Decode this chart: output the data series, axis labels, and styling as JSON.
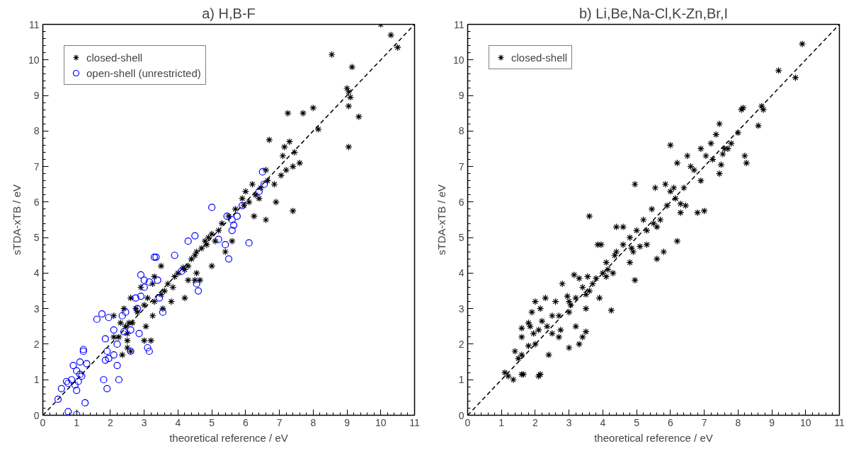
{
  "chart_data": [
    {
      "type": "scatter",
      "title": "a) H,B-F",
      "xlabel": "theoretical reference / eV",
      "ylabel": "sTDA-xTB / eV",
      "xlim": [
        0,
        11
      ],
      "ylim": [
        0,
        11
      ],
      "xticks": [
        0,
        1,
        2,
        3,
        4,
        5,
        6,
        7,
        8,
        9,
        10,
        11
      ],
      "yticks": [
        0,
        1,
        2,
        3,
        4,
        5,
        6,
        7,
        8,
        9,
        10,
        11
      ],
      "grid": false,
      "legend": "top left",
      "series": [
        {
          "name": "closed-shell",
          "color": "#000000",
          "marker": "cross",
          "x": [
            10.0,
            10.3,
            10.5,
            8.55,
            9.15,
            9.0,
            9.05,
            9.1,
            9.05,
            9.35,
            9.05,
            7.25,
            7.7,
            8.0,
            8.15,
            6.7,
            7.1,
            7.15,
            7.3,
            7.45,
            7.6,
            7.4,
            7.2,
            7.05,
            6.85,
            6.6,
            6.65,
            6.45,
            6.3,
            6.2,
            6.0,
            6.1,
            5.9,
            6.4,
            6.6,
            6.9,
            7.4,
            6.25,
            5.95,
            5.7,
            5.5,
            5.3,
            5.2,
            5.0,
            4.8,
            4.7,
            4.55,
            4.4,
            4.3,
            4.2,
            4.0,
            4.5,
            4.9,
            5.1,
            5.4,
            5.6,
            4.85,
            5.0,
            4.55,
            4.3,
            4.2,
            4.65,
            4.15,
            4.5,
            3.9,
            3.7,
            3.6,
            3.5,
            3.3,
            3.1,
            3.0,
            3.25,
            3.3,
            3.5,
            3.85,
            3.8,
            3.55,
            3.25,
            3.05,
            3.2,
            3.0,
            2.8,
            2.65,
            2.5,
            2.3,
            2.25,
            2.55,
            2.45,
            2.5,
            2.6,
            2.35,
            2.5,
            2.1,
            2.1,
            2.4,
            2.6,
            2.75,
            2.9
          ],
          "values": [
            11.0,
            10.7,
            10.35,
            10.15,
            9.8,
            9.2,
            9.1,
            8.95,
            8.7,
            8.4,
            7.55,
            8.5,
            8.5,
            8.65,
            8.05,
            7.75,
            7.3,
            7.55,
            7.7,
            7.4,
            7.1,
            7.0,
            6.9,
            6.75,
            6.5,
            6.9,
            6.6,
            6.4,
            6.2,
            6.5,
            6.3,
            6.0,
            6.1,
            6.1,
            5.5,
            6.0,
            5.75,
            5.6,
            5.9,
            5.8,
            5.6,
            5.4,
            5.2,
            5.1,
            4.9,
            4.7,
            4.6,
            4.4,
            4.2,
            4.1,
            4.0,
            4.5,
            5.0,
            4.9,
            4.6,
            4.9,
            4.8,
            4.2,
            4.0,
            3.8,
            3.3,
            3.8,
            4.15,
            3.8,
            3.9,
            3.7,
            3.5,
            3.4,
            3.2,
            3.3,
            3.1,
            3.7,
            3.9,
            4.2,
            3.6,
            3.2,
            3.0,
            2.8,
            2.5,
            2.1,
            2.1,
            2.9,
            2.6,
            2.3,
            2.6,
            2.2,
            2.6,
            2.5,
            2.1,
            1.8,
            1.7,
            1.9,
            2.8,
            2.2,
            3.0,
            3.3,
            3.0,
            3.6
          ]
        },
        {
          "name": "open-shell (unrestricted)",
          "color": "#0000ff",
          "marker": "circle",
          "x": [
            0.45,
            0.55,
            0.7,
            0.75,
            0.85,
            0.95,
            1.0,
            1.05,
            1.1,
            1.0,
            1.15,
            0.9,
            1.1,
            1.3,
            1.2,
            1.2,
            1.25,
            0.75,
            1.0,
            1.85,
            1.8,
            1.9,
            1.9,
            1.95,
            2.1,
            2.2,
            2.25,
            1.6,
            1.75,
            1.95,
            1.85,
            2.1,
            2.2,
            2.35,
            2.45,
            2.4,
            2.6,
            2.6,
            2.8,
            2.85,
            3.1,
            3.15,
            2.75,
            2.9,
            3.0,
            3.0,
            2.9,
            3.15,
            3.4,
            3.45,
            3.55,
            3.3,
            3.35,
            3.9,
            4.1,
            4.3,
            4.5,
            4.55,
            4.6,
            5.0,
            5.2,
            5.5,
            5.4,
            5.45,
            5.6,
            5.75,
            5.9,
            5.6,
            6.1,
            5.65,
            6.4,
            6.5,
            6.55
          ],
          "values": [
            0.45,
            0.75,
            0.95,
            0.9,
            1.0,
            0.85,
            0.7,
            0.95,
            1.15,
            1.25,
            1.1,
            1.4,
            1.5,
            1.45,
            1.85,
            1.8,
            0.35,
            0.1,
            0.02,
            1.55,
            1.0,
            0.75,
            1.8,
            1.6,
            1.7,
            1.4,
            1.0,
            2.7,
            2.85,
            2.75,
            2.15,
            2.4,
            2.0,
            2.8,
            2.9,
            2.35,
            2.4,
            1.8,
            3.0,
            2.3,
            1.9,
            1.8,
            3.3,
            3.35,
            3.6,
            3.8,
            3.95,
            3.75,
            3.8,
            3.3,
            2.9,
            4.45,
            4.45,
            4.5,
            4.05,
            4.9,
            5.05,
            3.7,
            3.5,
            5.85,
            4.95,
            4.4,
            4.8,
            5.6,
            5.5,
            5.6,
            5.9,
            5.2,
            4.85,
            5.35,
            6.3,
            6.85,
            6.5
          ]
        },
        {
          "type": "line",
          "color": "#000000",
          "line_style": "dashed",
          "x": [
            0,
            11
          ],
          "values": [
            0,
            11
          ]
        }
      ]
    },
    {
      "type": "scatter",
      "title": "b) Li,Be,Na-Cl,K-Zn,Br,I",
      "xlabel": "theoretical reference / eV",
      "ylabel": "sTDA-xTB / eV",
      "xlim": [
        0,
        11
      ],
      "ylim": [
        0,
        11
      ],
      "xticks": [
        0,
        1,
        2,
        3,
        4,
        5,
        6,
        7,
        8,
        9,
        10,
        11
      ],
      "yticks": [
        0,
        1,
        2,
        3,
        4,
        5,
        6,
        7,
        8,
        9,
        10,
        11
      ],
      "grid": false,
      "legend": "top left",
      "series": [
        {
          "name": "closed-shell",
          "color": "#000000",
          "marker": "cross",
          "x": [
            9.9,
            9.2,
            9.7,
            8.1,
            8.15,
            8.7,
            8.75,
            8.6,
            8.0,
            7.7,
            7.45,
            7.35,
            7.8,
            7.55,
            7.6,
            7.2,
            6.9,
            7.05,
            7.25,
            8.2,
            7.5,
            8.25,
            7.45,
            6.0,
            6.2,
            6.5,
            6.6,
            6.9,
            6.4,
            6.7,
            5.85,
            6.0,
            6.15,
            6.1,
            5.55,
            5.9,
            6.3,
            6.45,
            6.8,
            7.0,
            6.3,
            5.7,
            5.5,
            5.3,
            5.2,
            5.45,
            4.95,
            5.0,
            4.8,
            4.6,
            4.85,
            5.1,
            5.3,
            5.6,
            5.8,
            6.2,
            5.6,
            4.95,
            4.4,
            4.3,
            4.1,
            4.0,
            3.8,
            3.7,
            3.6,
            3.5,
            3.4,
            3.2,
            3.0,
            3.05,
            3.5,
            3.9,
            4.1,
            4.25,
            3.6,
            3.95,
            3.85,
            4.4,
            4.8,
            4.6,
            4.9,
            4.35,
            4.15,
            3.55,
            3.3,
            3.15,
            2.8,
            2.95,
            2.6,
            2.5,
            2.3,
            2.15,
            2.0,
            1.9,
            1.8,
            1.6,
            1.6,
            1.85,
            2.1,
            2.35,
            2.7,
            2.75,
            3.0,
            3.2,
            3.5,
            2.7,
            3.4,
            2.4,
            3.0,
            3.3,
            2.0,
            1.8,
            1.4,
            1.5,
            1.6,
            1.1,
            1.2,
            1.35,
            1.6,
            1.65,
            2.1,
            2.15,
            2.5,
            2.2,
            1.95
          ],
          "values": [
            10.45,
            9.7,
            9.5,
            8.6,
            8.65,
            8.7,
            8.6,
            8.15,
            7.95,
            7.5,
            8.2,
            7.9,
            7.65,
            7.35,
            7.5,
            7.65,
            7.5,
            7.3,
            7.2,
            7.3,
            7.05,
            7.1,
            6.8,
            7.6,
            7.1,
            7.3,
            7.0,
            6.6,
            6.4,
            6.9,
            6.5,
            6.3,
            6.1,
            6.4,
            6.4,
            5.9,
            5.7,
            5.9,
            5.7,
            5.75,
            5.95,
            5.5,
            5.4,
            5.2,
            5.5,
            5.8,
            6.5,
            5.2,
            5.0,
            4.8,
            4.7,
            4.75,
            4.8,
            5.3,
            4.6,
            4.9,
            4.4,
            3.8,
            4.6,
            4.0,
            4.3,
            4.0,
            3.85,
            3.7,
            3.5,
            3.4,
            3.6,
            3.3,
            3.2,
            3.1,
            3.0,
            3.3,
            3.9,
            2.95,
            5.6,
            4.8,
            4.8,
            5.3,
            4.3,
            5.3,
            4.6,
            4.5,
            4.1,
            3.9,
            3.85,
            3.95,
            3.7,
            3.35,
            3.2,
            2.8,
            3.3,
            3.0,
            3.2,
            2.9,
            2.6,
            2.45,
            2.2,
            2.5,
            2.4,
            2.5,
            2.8,
            2.4,
            2.9,
            2.5,
            2.35,
            2.2,
            2.2,
            1.7,
            1.9,
            2.0,
            2.0,
            1.95,
            1.8,
            1.6,
            1.7,
            1.2,
            1.1,
            1.0,
            1.15,
            1.15,
            1.1,
            1.15,
            2.3,
            2.65,
            2.3
          ]
        },
        {
          "type": "line",
          "color": "#000000",
          "line_style": "dashed",
          "x": [
            0,
            11
          ],
          "values": [
            0,
            11
          ]
        }
      ]
    }
  ]
}
